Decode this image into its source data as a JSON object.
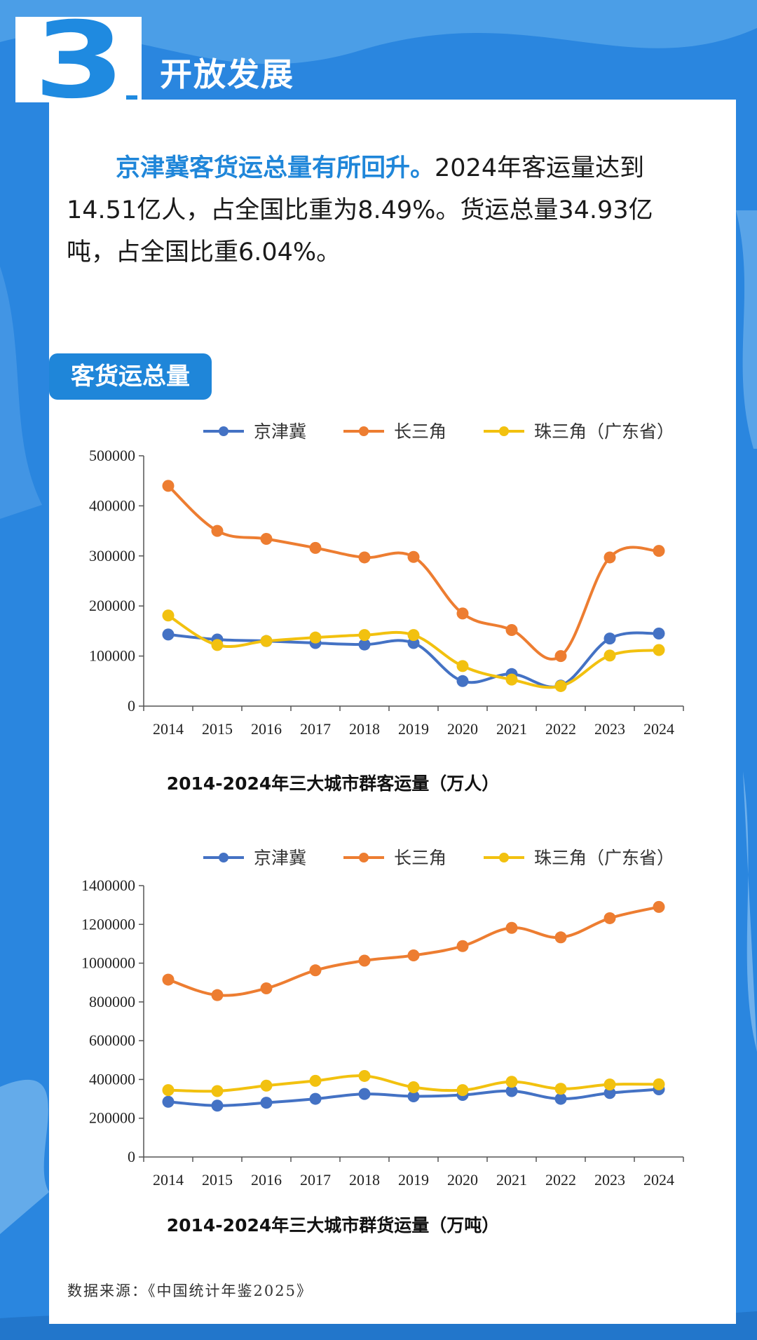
{
  "section": {
    "number": "3",
    "title": "开放发展"
  },
  "intro": {
    "headline": "京津冀客货运总量有所回升。",
    "body": "2024年客运量达到14.51亿人，占全国比重为8.49%。货运总量34.93亿吨，占全国比重6.04%。"
  },
  "pill_label": "客货运总量",
  "colors": {
    "bg": "#2a86df",
    "jjj": "#4472c4",
    "csj": "#ed7d31",
    "zsj": "#f2c10f",
    "accent": "#1f86d9"
  },
  "chart_data": [
    {
      "type": "line",
      "title": "2014-2024年三大城市群客运量（万人）",
      "categories": [
        "2014",
        "2015",
        "2016",
        "2017",
        "2018",
        "2019",
        "2020",
        "2021",
        "2022",
        "2023",
        "2024"
      ],
      "ylim": [
        0,
        500000
      ],
      "yticks": [
        0,
        100000,
        200000,
        300000,
        400000,
        500000
      ],
      "ytick_labels": [
        "0",
        "100000",
        "200000",
        "300000",
        "400000",
        "500000"
      ],
      "legend_position": "top",
      "series": [
        {
          "name": "京津冀",
          "color": "#4472c4",
          "values": [
            143000,
            133000,
            130000,
            126000,
            123000,
            126000,
            50000,
            64000,
            41000,
            135000,
            145000
          ]
        },
        {
          "name": "长三角",
          "color": "#ed7d31",
          "values": [
            440000,
            350000,
            334000,
            316000,
            297000,
            298000,
            185000,
            152000,
            100000,
            297000,
            310000
          ]
        },
        {
          "name": "珠三角（广东省）",
          "color": "#f2c10f",
          "values": [
            181000,
            122000,
            130000,
            137000,
            142000,
            142000,
            80000,
            53000,
            40000,
            101000,
            112000
          ]
        }
      ]
    },
    {
      "type": "line",
      "title": "2014-2024年三大城市群货运量（万吨）",
      "categories": [
        "2014",
        "2015",
        "2016",
        "2017",
        "2018",
        "2019",
        "2020",
        "2021",
        "2022",
        "2023",
        "2024"
      ],
      "ylim": [
        0,
        1400000
      ],
      "yticks": [
        0,
        200000,
        400000,
        600000,
        800000,
        1000000,
        1200000,
        1400000
      ],
      "ytick_labels": [
        "0",
        "200000",
        "400000",
        "600000",
        "800000",
        "1000000",
        "1200000",
        "1400000"
      ],
      "legend_position": "top",
      "series": [
        {
          "name": "京津冀",
          "color": "#4472c4",
          "values": [
            285000,
            265000,
            280000,
            300000,
            325000,
            313000,
            320000,
            340000,
            300000,
            330000,
            349000
          ]
        },
        {
          "name": "长三角",
          "color": "#ed7d31",
          "values": [
            915000,
            835000,
            870000,
            963000,
            1013000,
            1040000,
            1088000,
            1182000,
            1133000,
            1232000,
            1290000
          ]
        },
        {
          "name": "珠三角（广东省）",
          "color": "#f2c10f",
          "values": [
            345000,
            340000,
            368000,
            393000,
            418000,
            360000,
            345000,
            388000,
            352000,
            374000,
            375000
          ]
        }
      ]
    }
  ],
  "source": "数据来源：《中国统计年鉴2025》"
}
